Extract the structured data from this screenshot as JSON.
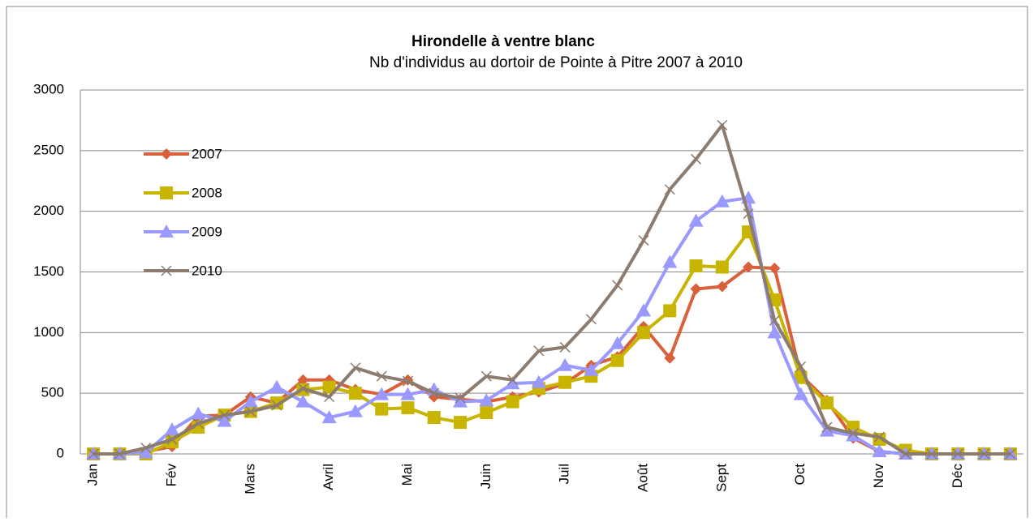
{
  "chart_data": {
    "type": "line",
    "title": "Hirondelle à ventre  blanc",
    "subtitle": "Nb d'individus au dortoir de Pointe à Pitre 2007 à 2010",
    "categories": [
      "Jan",
      null,
      null,
      "Fév",
      null,
      null,
      "Mars",
      null,
      null,
      "Avril",
      null,
      null,
      "Mai",
      null,
      null,
      "Juin",
      null,
      null,
      "Juil",
      null,
      null,
      "Août",
      null,
      null,
      "Sept",
      null,
      null,
      "Oct",
      null,
      null,
      "Nov",
      null,
      null,
      "Déc",
      null,
      null
    ],
    "series": [
      {
        "name": "2007",
        "color": "#d9603b",
        "marker": "diamond",
        "values": [
          0,
          0,
          20,
          60,
          310,
          320,
          470,
          420,
          610,
          610,
          530,
          490,
          610,
          470,
          450,
          430,
          470,
          510,
          580,
          730,
          800,
          1050,
          790,
          1360,
          1380,
          1540,
          1530,
          650,
          440,
          130,
          20,
          0,
          0,
          0,
          0,
          0
        ]
      },
      {
        "name": "2008",
        "color": "#c9b400",
        "marker": "square",
        "values": [
          0,
          0,
          0,
          100,
          220,
          320,
          350,
          420,
          530,
          550,
          500,
          370,
          380,
          300,
          260,
          340,
          430,
          540,
          590,
          640,
          770,
          1000,
          1180,
          1550,
          1540,
          1830,
          1270,
          630,
          420,
          220,
          120,
          30,
          0,
          0,
          0,
          0
        ]
      },
      {
        "name": "2009",
        "color": "#9999ff",
        "marker": "triangle",
        "values": [
          0,
          0,
          10,
          200,
          330,
          270,
          430,
          550,
          430,
          300,
          350,
          490,
          490,
          530,
          430,
          440,
          580,
          590,
          730,
          690,
          910,
          1180,
          1580,
          1920,
          2080,
          2110,
          1000,
          490,
          190,
          150,
          20,
          0,
          0,
          0,
          0,
          0
        ]
      },
      {
        "name": "2010",
        "color": "#8c7b6f",
        "marker": "x",
        "values": [
          0,
          0,
          50,
          120,
          250,
          320,
          350,
          400,
          540,
          470,
          710,
          640,
          600,
          500,
          460,
          640,
          610,
          850,
          880,
          1110,
          1390,
          1760,
          2180,
          2430,
          2710,
          1980,
          1100,
          720,
          220,
          170,
          140,
          0,
          0,
          0,
          0,
          0
        ]
      }
    ],
    "ylim": [
      0,
      3000
    ],
    "yticks": [
      0,
      500,
      1000,
      1500,
      2000,
      2500,
      3000
    ],
    "grid": true
  }
}
